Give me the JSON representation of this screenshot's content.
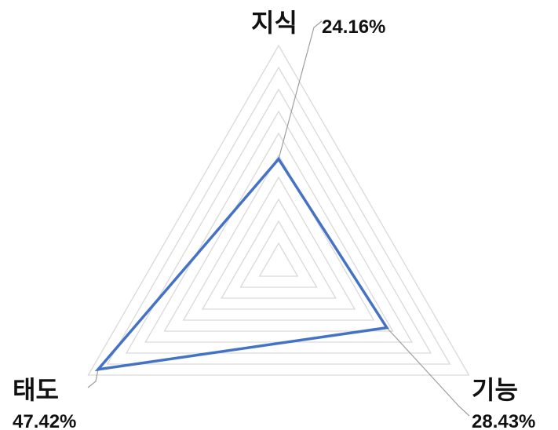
{
  "chart_data": {
    "type": "radar",
    "categories": [
      "지식",
      "기능",
      "태도"
    ],
    "values": [
      24.16,
      28.43,
      47.42
    ],
    "value_labels": [
      "24.16%",
      "28.43%",
      "47.42%"
    ],
    "rlim": [
      0,
      50
    ],
    "grid_rings": 10,
    "legend": "none",
    "series_color": "#4472C4",
    "grid_color": "#D9D9D9",
    "leader_line_color": "#9E9E9E"
  }
}
